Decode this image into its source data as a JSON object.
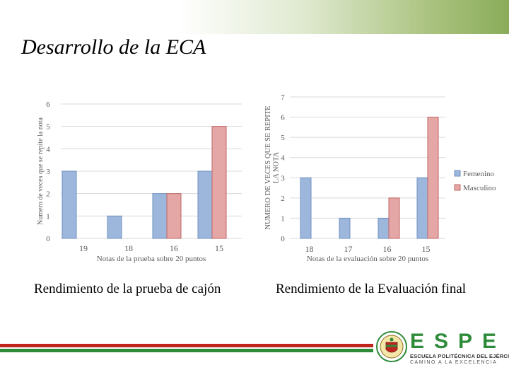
{
  "slide": {
    "title": "Desarrollo de la ECA",
    "caption_left": "Rendimiento de la prueba de cajón",
    "caption_right": "Rendimiento de la Evaluación final"
  },
  "colors": {
    "femenino_fill": "#9db7dc",
    "femenino_stroke": "#6e8fbf",
    "masculino_fill": "#e5a6a6",
    "masculino_stroke": "#c06464"
  },
  "chart_data": [
    {
      "type": "bar",
      "categories": [
        "19",
        "18",
        "16",
        "15"
      ],
      "series": [
        {
          "values": [
            3,
            1,
            2,
            3
          ]
        },
        {
          "values": [
            0,
            0,
            2,
            5
          ]
        }
      ],
      "xlabel": "Notas de la prueba sobre 20 puntos",
      "ylabel": "Numero de veces que se repite la nota",
      "ylim": [
        0,
        6
      ],
      "yticks": [
        0,
        1,
        2,
        3,
        4,
        5,
        6
      ],
      "grid": true
    },
    {
      "type": "bar",
      "categories": [
        "18",
        "17",
        "16",
        "15"
      ],
      "series": [
        {
          "name": "Femenino",
          "values": [
            3,
            1,
            1,
            3
          ]
        },
        {
          "name": "Masculino",
          "values": [
            0,
            0,
            2,
            6
          ]
        }
      ],
      "xlabel": "Notas de la evaluación sobre 20 puntos",
      "ylabel": "NUMERO DE VECES QUE SE REPITE LA NOTA",
      "ylim": [
        0,
        7
      ],
      "yticks": [
        0,
        1,
        2,
        3,
        4,
        5,
        6,
        7
      ],
      "grid": true,
      "legend": "right"
    }
  ],
  "footer": {
    "logo_text": "ESPE",
    "logo_subtitle": "ESCUELA POLITÉCNICA DEL EJÉRCITO",
    "logo_motto": "CAMINO A LA EXCELENCIA"
  }
}
